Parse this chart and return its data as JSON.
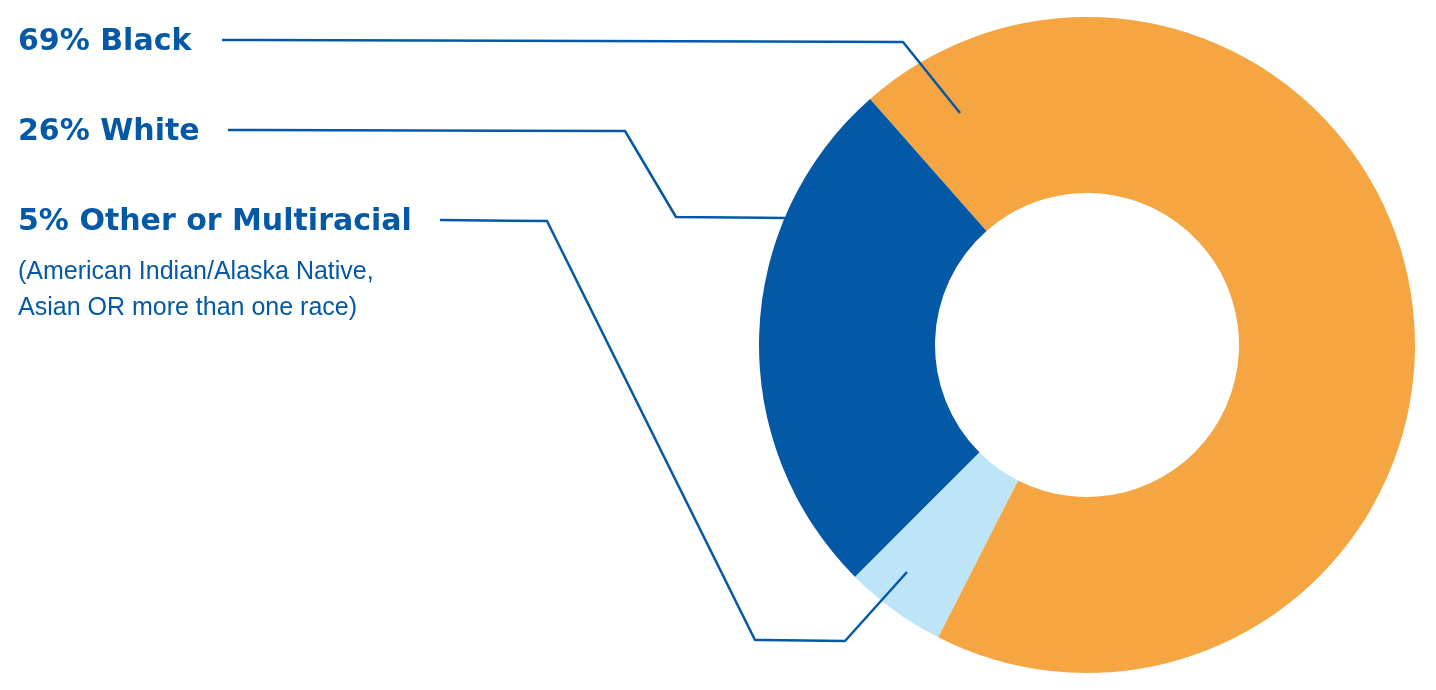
{
  "chart_data": {
    "type": "donut",
    "categories": [
      "Black",
      "White",
      "Other or Multiracial"
    ],
    "values": [
      69,
      26,
      5
    ],
    "colors": [
      "#f5a642",
      "#0459a6",
      "#bde5f7"
    ],
    "value_labels": [
      "69%",
      "26%",
      "5%"
    ],
    "annotations": [
      "(American Indian/Alaska Native, Asian OR more than one race)"
    ]
  }
}
